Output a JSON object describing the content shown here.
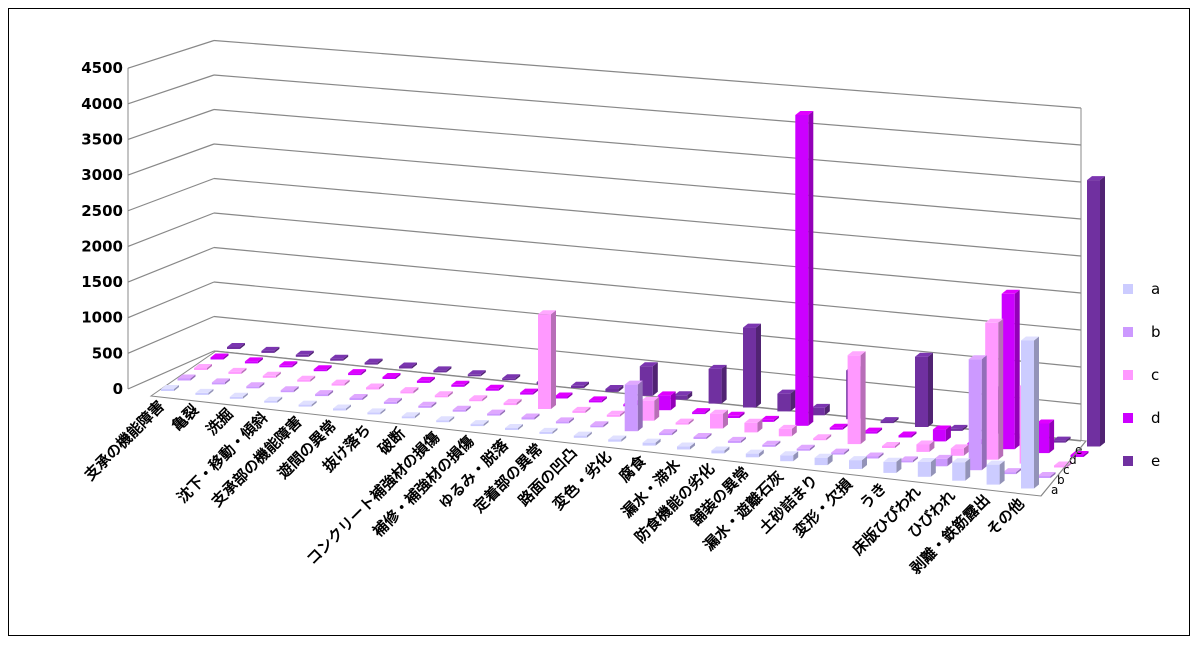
{
  "chart_data": {
    "type": "bar",
    "subtype": "3d-column",
    "title": "",
    "xlabel": "",
    "ylabel": "",
    "ylim": [
      0,
      4500
    ],
    "yticks": [
      "0",
      "500",
      "1000",
      "1500",
      "2000",
      "2500",
      "3000",
      "3500",
      "4000",
      "4500"
    ],
    "grid": true,
    "legend_position": "right",
    "categories": [
      "支承の機能障害",
      "亀裂",
      "洗掘",
      "沈下・移動・傾斜",
      "支承部の機能障害",
      "遊間の異常",
      "抜け落ち",
      "破断",
      "コンクリート補強材の損傷",
      "補修・補強材の損傷",
      "ゆるみ・脱落",
      "定着部の異常",
      "路面の凹凸",
      "変色・劣化",
      "腐食",
      "漏水・滞水",
      "防食機能の劣化",
      "舗装の異常",
      "漏水・遊離石灰",
      "土砂詰まり",
      "変形・欠損",
      "うき",
      "床版ひびわれ",
      "ひびわれ",
      "剥離・鉄筋露出",
      "その他"
    ],
    "series": [
      {
        "name": "a",
        "color": "#ccccff",
        "values": [
          5,
          5,
          5,
          10,
          10,
          10,
          15,
          10,
          10,
          10,
          15,
          20,
          30,
          30,
          40,
          40,
          40,
          50,
          80,
          100,
          120,
          150,
          200,
          250,
          270,
          2000
        ]
      },
      {
        "name": "b",
        "color": "#cc99ff",
        "values": [
          0,
          0,
          0,
          0,
          0,
          0,
          0,
          0,
          0,
          0,
          0,
          0,
          0,
          630,
          0,
          0,
          0,
          0,
          0,
          0,
          0,
          0,
          100,
          1500,
          0,
          0
        ]
      },
      {
        "name": "c",
        "color": "#ff99ff",
        "values": [
          0,
          0,
          20,
          0,
          0,
          0,
          30,
          0,
          0,
          30,
          1280,
          0,
          0,
          270,
          0,
          200,
          130,
          100,
          0,
          1200,
          0,
          100,
          100,
          1850,
          1050,
          0
        ]
      },
      {
        "name": "d",
        "color": "#cc00ff",
        "values": [
          0,
          0,
          0,
          0,
          0,
          0,
          0,
          0,
          0,
          0,
          0,
          0,
          0,
          200,
          0,
          30,
          0,
          4200,
          0,
          20,
          0,
          160,
          0,
          2100,
          400,
          0
        ]
      },
      {
        "name": "e",
        "color": "#7030a0",
        "values": [
          20,
          20,
          0,
          10,
          20,
          20,
          20,
          20,
          20,
          20,
          30,
          40,
          400,
          60,
          470,
          1080,
          240,
          100,
          660,
          20,
          950,
          0,
          600,
          0,
          0,
          3600
        ]
      }
    ]
  }
}
